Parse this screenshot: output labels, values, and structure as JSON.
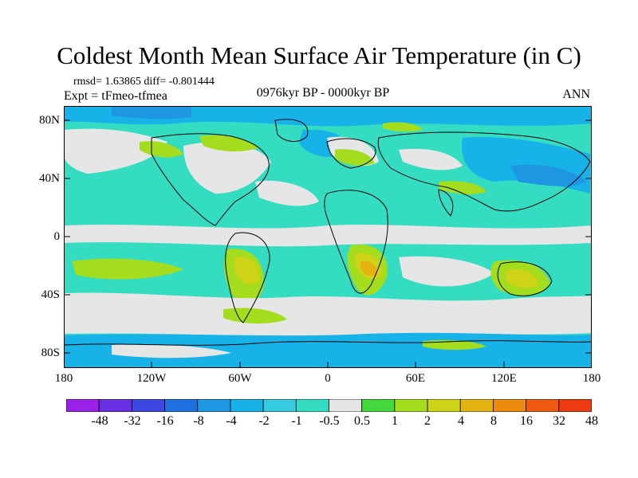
{
  "title": "Coldest Month Mean Surface Air Temperature (in C)",
  "stats_text": "rmsd= 1.63865  diff= -0.801444",
  "experiment_text": "Expt = tFmeo-tfmea",
  "period_text": "0976kyr BP - 0000kyr BP",
  "season_text": "ANN",
  "lat_labels": [
    "80N",
    "40N",
    "0",
    "40S",
    "80S"
  ],
  "lon_labels": [
    "180",
    "120W",
    "60W",
    "0",
    "60E",
    "120E",
    "180"
  ],
  "colorbar": {
    "colors": [
      "#9a21e8",
      "#6a2ee3",
      "#3c48e0",
      "#1e6fe0",
      "#1f96e2",
      "#16b2e8",
      "#34ccde",
      "#34dcc2",
      "#e6e6e6",
      "#44d83c",
      "#a4dc1e",
      "#cfd318",
      "#e4b312",
      "#ea8a0e",
      "#ee5a12",
      "#ec3a12"
    ],
    "labels": [
      "-48",
      "-32",
      "-16",
      "-8",
      "-4",
      "-2",
      "-1",
      "-0.5",
      "0.5",
      "1",
      "2",
      "4",
      "8",
      "16",
      "32",
      "48"
    ]
  }
}
